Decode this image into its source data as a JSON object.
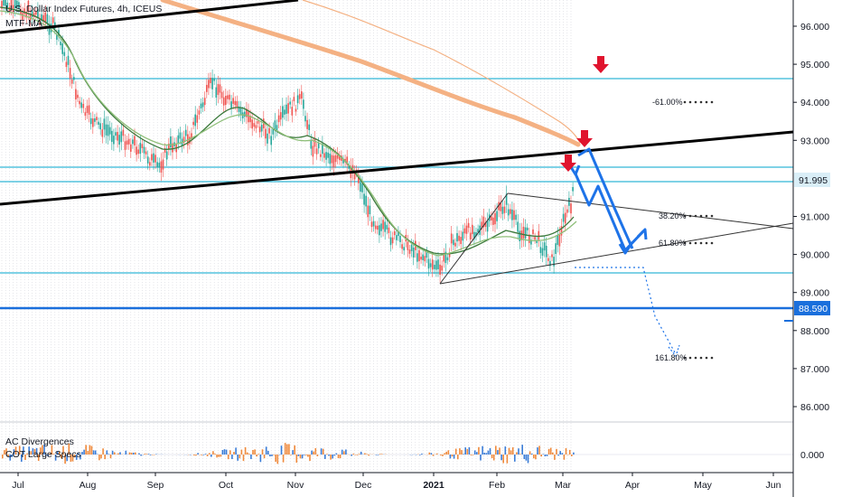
{
  "header": {
    "symbol_line": "U.S. Dollar Index Futures, 4h, ICEUS",
    "indicator_label": "MTF-MA"
  },
  "lower_pane": {
    "indicator_1": "AC Divergences",
    "indicator_2": "COT Large Specs",
    "zero_label": "0.000"
  },
  "price_axis": {
    "ticks": [
      "96.000",
      "95.000",
      "94.000",
      "93.000",
      "91.000",
      "90.000",
      "89.000",
      "88.000",
      "87.000",
      "86.000"
    ],
    "tick_values": [
      96,
      95,
      94,
      93,
      91,
      90,
      89,
      88,
      87,
      86
    ]
  },
  "price_labels": {
    "current": "91.995",
    "support": "88.590"
  },
  "time_axis": {
    "labels": [
      "Jul",
      "Aug",
      "Sep",
      "Oct",
      "Nov",
      "Dec",
      "2021",
      "Feb",
      "Mar",
      "Apr",
      "May",
      "Jun"
    ]
  },
  "fib_labels": {
    "fib_61_upper": "-61.00%",
    "fib_38": "38.20%",
    "fib_61": "61.80%",
    "fib_161": "161.80%"
  },
  "colors": {
    "candle_up": "#26a69a",
    "candle_down": "#ef5350",
    "ma_slow": "#f4b183",
    "ma_fast": "#6a9f6a",
    "level_line": "#33b6d6",
    "support_line": "#1a6fdc",
    "trend_line": "#000000",
    "arrow_blue": "#1e73e8",
    "marker_red": "#e0142e",
    "price_badge_bg": "#d9eef7",
    "support_badge_bg": "#1a6fdc"
  }
}
